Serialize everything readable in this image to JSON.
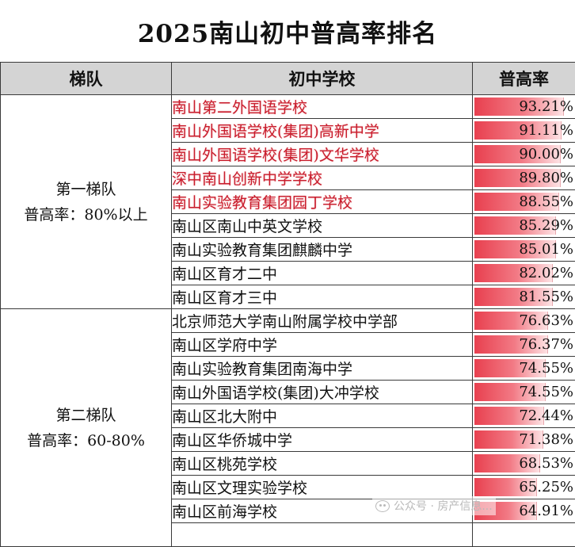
{
  "title": "2025南山初中普高率排名",
  "headers": {
    "tier": "梯队",
    "school": "初中学校",
    "rate": "普高率"
  },
  "tiers": [
    {
      "name": "第一梯队",
      "desc": "普高率：80%以上",
      "rowspan": 9
    },
    {
      "name": "第二梯队",
      "desc": "普高率：60-80%",
      "rowspan": 10
    }
  ],
  "rows": [
    {
      "school": "南山第二外国语学校",
      "rate": "93.21%",
      "value": 93.21,
      "highlight": true
    },
    {
      "school": "南山外国语学校(集团)高新中学",
      "rate": "91.11%",
      "value": 91.11,
      "highlight": true
    },
    {
      "school": "南山外国语学校(集团)文华学校",
      "rate": "90.00%",
      "value": 90.0,
      "highlight": true
    },
    {
      "school": "深中南山创新中学学校",
      "rate": "89.80%",
      "value": 89.8,
      "highlight": true
    },
    {
      "school": "南山实验教育集团园丁学校",
      "rate": "88.55%",
      "value": 88.55,
      "highlight": true
    },
    {
      "school": "南山区南山中英文学校",
      "rate": "85.29%",
      "value": 85.29,
      "highlight": false
    },
    {
      "school": "南山实验教育集团麒麟中学",
      "rate": "85.01%",
      "value": 85.01,
      "highlight": false
    },
    {
      "school": "南山区育才二中",
      "rate": "82.02%",
      "value": 82.02,
      "highlight": false
    },
    {
      "school": "南山区育才三中",
      "rate": "81.55%",
      "value": 81.55,
      "highlight": false
    },
    {
      "school": "北京师范大学南山附属学校中学部",
      "rate": "76.63%",
      "value": 76.63,
      "highlight": false
    },
    {
      "school": "南山区学府中学",
      "rate": "76.37%",
      "value": 76.37,
      "highlight": false
    },
    {
      "school": "南山实验教育集团南海中学",
      "rate": "74.55%",
      "value": 74.55,
      "highlight": false
    },
    {
      "school": "南山外国语学校(集团)大冲学校",
      "rate": "74.55%",
      "value": 74.55,
      "highlight": false
    },
    {
      "school": "南山区北大附中",
      "rate": "72.44%",
      "value": 72.44,
      "highlight": false
    },
    {
      "school": "南山区华侨城中学",
      "rate": "71.38%",
      "value": 71.38,
      "highlight": false
    },
    {
      "school": "南山区桃苑学校",
      "rate": "68.53%",
      "value": 68.53,
      "highlight": false
    },
    {
      "school": "南山区文理实验学校",
      "rate": "65.25%",
      "value": 65.25,
      "highlight": false
    },
    {
      "school": "南山区前海学校",
      "rate": "64.91%",
      "value": 64.91,
      "highlight": false
    },
    {
      "school": "",
      "rate": "",
      "value": 0,
      "highlight": false
    }
  ],
  "watermark": {
    "icon": "wechat-icon",
    "text": "公众号 · 房产信息..."
  }
}
